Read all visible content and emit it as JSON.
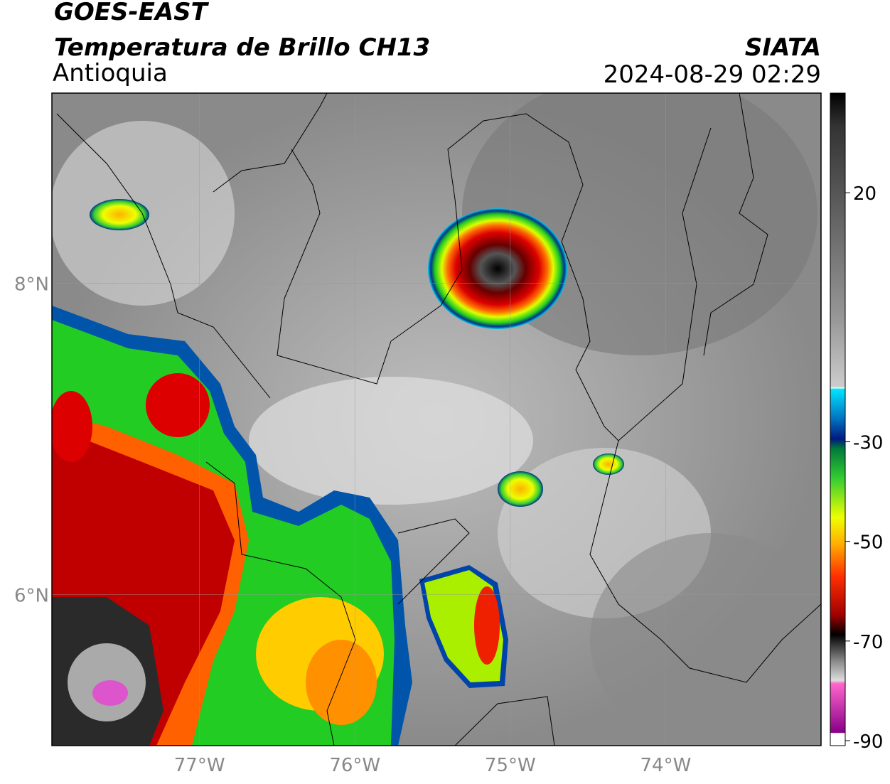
{
  "chart_data": {
    "type": "map",
    "title": "GOES-EAST",
    "subtitle": "Temperatura de Brillo CH13",
    "region": "Antioquia",
    "source": "SIATA",
    "datetime": "2024-08-29 02:29",
    "xlim": [
      -77.95,
      -73.0
    ],
    "ylim": [
      5.03,
      9.22
    ],
    "xticks": [
      {
        "value": -77,
        "label": "77°W"
      },
      {
        "value": -76,
        "label": "76°W"
      },
      {
        "value": -75,
        "label": "75°W"
      },
      {
        "value": -74,
        "label": "74°W"
      }
    ],
    "yticks": [
      {
        "value": 6,
        "label": "6°N"
      },
      {
        "value": 8,
        "label": "8°N"
      }
    ],
    "grid": true,
    "colorbar": {
      "clim": [
        -91,
        40
      ],
      "ticks": [
        20,
        -30,
        -50,
        -70,
        -90
      ]
    }
  }
}
